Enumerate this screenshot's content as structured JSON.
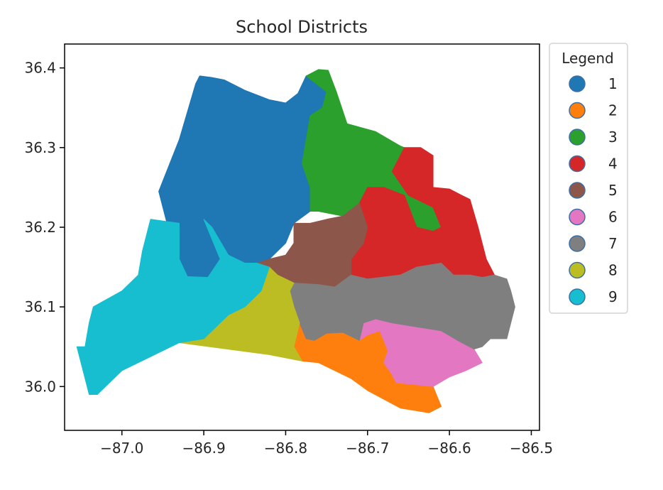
{
  "chart_data": {
    "type": "choropleth",
    "title": "School Districts",
    "xlabel": "",
    "ylabel": "",
    "xlim": [
      -87.07,
      -86.49
    ],
    "ylim": [
      35.945,
      36.43
    ],
    "x_ticks": [
      "−87.0",
      "−86.9",
      "−86.8",
      "−86.7",
      "−86.6",
      "−86.5"
    ],
    "x_tick_values": [
      -87.0,
      -86.9,
      -86.8,
      -86.7,
      -86.6,
      -86.5
    ],
    "y_ticks": [
      "36.0",
      "36.1",
      "36.2",
      "36.3",
      "36.4"
    ],
    "y_tick_values": [
      36.0,
      36.1,
      36.2,
      36.3,
      36.4
    ],
    "grid": false,
    "legend": {
      "title": "Legend",
      "placement": "outside-right-top",
      "entries": [
        {
          "label": "1",
          "color": "#1f77b4"
        },
        {
          "label": "2",
          "color": "#ff7f0e"
        },
        {
          "label": "3",
          "color": "#2ca02c"
        },
        {
          "label": "4",
          "color": "#d62728"
        },
        {
          "label": "5",
          "color": "#8c564b"
        },
        {
          "label": "6",
          "color": "#e377c2"
        },
        {
          "label": "7",
          "color": "#7f7f7f"
        },
        {
          "label": "8",
          "color": "#bcbd22"
        },
        {
          "label": "9",
          "color": "#17becf"
        }
      ]
    },
    "districts": [
      {
        "district": "1",
        "color": "#1f77b4",
        "boundary": [
          [
            -86.945,
            36.205
          ],
          [
            -86.955,
            36.245
          ],
          [
            -86.93,
            36.31
          ],
          [
            -86.91,
            36.38
          ],
          [
            -86.905,
            36.39
          ],
          [
            -86.89,
            36.388
          ],
          [
            -86.875,
            36.385
          ],
          [
            -86.85,
            36.372
          ],
          [
            -86.82,
            36.36
          ],
          [
            -86.8,
            36.356
          ],
          [
            -86.785,
            36.368
          ],
          [
            -86.775,
            36.39
          ],
          [
            -86.76,
            36.39
          ],
          [
            -86.75,
            36.37
          ],
          [
            -86.755,
            36.35
          ],
          [
            -86.77,
            36.34
          ],
          [
            -86.775,
            36.31
          ],
          [
            -86.78,
            36.28
          ],
          [
            -86.77,
            36.25
          ],
          [
            -86.77,
            36.22
          ],
          [
            -86.79,
            36.205
          ],
          [
            -86.8,
            36.18
          ],
          [
            -86.82,
            36.16
          ],
          [
            -86.835,
            36.155
          ],
          [
            -86.85,
            36.155
          ],
          [
            -86.87,
            36.165
          ],
          [
            -86.89,
            36.2
          ],
          [
            -86.9,
            36.21
          ],
          [
            -86.89,
            36.185
          ],
          [
            -86.88,
            36.16
          ],
          [
            -86.895,
            36.137
          ],
          [
            -86.92,
            36.138
          ],
          [
            -86.93,
            36.16
          ],
          [
            -86.93,
            36.2
          ]
        ]
      },
      {
        "district": "2",
        "color": "#ff7f0e",
        "boundary": [
          [
            -86.783,
            36.08
          ],
          [
            -86.775,
            36.06
          ],
          [
            -86.765,
            36.058
          ],
          [
            -86.75,
            36.067
          ],
          [
            -86.73,
            36.068
          ],
          [
            -86.71,
            36.058
          ],
          [
            -86.7,
            36.065
          ],
          [
            -86.685,
            36.07
          ],
          [
            -86.675,
            36.045
          ],
          [
            -86.68,
            36.03
          ],
          [
            -86.67,
            36.015
          ],
          [
            -86.665,
            36.005
          ],
          [
            -86.62,
            36.0
          ],
          [
            -86.61,
            35.975
          ],
          [
            -86.625,
            35.967
          ],
          [
            -86.66,
            35.973
          ],
          [
            -86.7,
            35.995
          ],
          [
            -86.72,
            36.01
          ],
          [
            -86.76,
            36.03
          ],
          [
            -86.78,
            36.032
          ],
          [
            -86.79,
            36.05
          ]
        ]
      },
      {
        "district": "3",
        "color": "#2ca02c",
        "boundary": [
          [
            -86.775,
            36.39
          ],
          [
            -86.76,
            36.398
          ],
          [
            -86.748,
            36.397
          ],
          [
            -86.738,
            36.37
          ],
          [
            -86.725,
            36.33
          ],
          [
            -86.69,
            36.32
          ],
          [
            -86.66,
            36.302
          ],
          [
            -86.655,
            36.3
          ],
          [
            -86.67,
            36.27
          ],
          [
            -86.65,
            36.24
          ],
          [
            -86.62,
            36.225
          ],
          [
            -86.61,
            36.2
          ],
          [
            -86.62,
            36.195
          ],
          [
            -86.64,
            36.2
          ],
          [
            -86.655,
            36.24
          ],
          [
            -86.68,
            36.25
          ],
          [
            -86.7,
            36.25
          ],
          [
            -86.71,
            36.23
          ],
          [
            -86.73,
            36.214
          ],
          [
            -86.76,
            36.22
          ],
          [
            -86.77,
            36.22
          ],
          [
            -86.77,
            36.25
          ],
          [
            -86.78,
            36.28
          ],
          [
            -86.775,
            36.31
          ],
          [
            -86.77,
            36.34
          ],
          [
            -86.755,
            36.35
          ],
          [
            -86.75,
            36.37
          ]
        ]
      },
      {
        "district": "4",
        "color": "#d62728",
        "boundary": [
          [
            -86.655,
            36.3
          ],
          [
            -86.635,
            36.3
          ],
          [
            -86.62,
            36.29
          ],
          [
            -86.62,
            36.25
          ],
          [
            -86.6,
            36.248
          ],
          [
            -86.585,
            36.24
          ],
          [
            -86.575,
            36.235
          ],
          [
            -86.565,
            36.2
          ],
          [
            -86.555,
            36.16
          ],
          [
            -86.545,
            36.14
          ],
          [
            -86.56,
            36.137
          ],
          [
            -86.575,
            36.14
          ],
          [
            -86.595,
            36.14
          ],
          [
            -86.61,
            36.155
          ],
          [
            -86.64,
            36.15
          ],
          [
            -86.66,
            36.14
          ],
          [
            -86.7,
            36.135
          ],
          [
            -86.72,
            36.14
          ],
          [
            -86.72,
            36.16
          ],
          [
            -86.705,
            36.18
          ],
          [
            -86.7,
            36.2
          ],
          [
            -86.71,
            36.23
          ],
          [
            -86.7,
            36.25
          ],
          [
            -86.68,
            36.25
          ],
          [
            -86.655,
            36.24
          ],
          [
            -86.64,
            36.2
          ],
          [
            -86.62,
            36.195
          ],
          [
            -86.61,
            36.2
          ],
          [
            -86.62,
            36.225
          ],
          [
            -86.65,
            36.24
          ],
          [
            -86.67,
            36.27
          ]
        ]
      },
      {
        "district": "5",
        "color": "#8c564b",
        "boundary": [
          [
            -86.835,
            36.155
          ],
          [
            -86.82,
            36.16
          ],
          [
            -86.8,
            36.165
          ],
          [
            -86.79,
            36.18
          ],
          [
            -86.79,
            36.205
          ],
          [
            -86.77,
            36.205
          ],
          [
            -86.75,
            36.21
          ],
          [
            -86.73,
            36.214
          ],
          [
            -86.71,
            36.23
          ],
          [
            -86.7,
            36.2
          ],
          [
            -86.705,
            36.18
          ],
          [
            -86.72,
            36.16
          ],
          [
            -86.72,
            36.14
          ],
          [
            -86.74,
            36.125
          ],
          [
            -86.76,
            36.128
          ],
          [
            -86.79,
            36.13
          ],
          [
            -86.81,
            36.14
          ],
          [
            -86.82,
            36.15
          ]
        ]
      },
      {
        "district": "6",
        "color": "#e377c2",
        "boundary": [
          [
            -86.71,
            36.058
          ],
          [
            -86.705,
            36.08
          ],
          [
            -86.69,
            36.085
          ],
          [
            -86.67,
            36.08
          ],
          [
            -86.64,
            36.075
          ],
          [
            -86.61,
            36.07
          ],
          [
            -86.59,
            36.058
          ],
          [
            -86.57,
            36.047
          ],
          [
            -86.56,
            36.03
          ],
          [
            -86.58,
            36.02
          ],
          [
            -86.6,
            36.012
          ],
          [
            -86.62,
            36.0
          ],
          [
            -86.665,
            36.005
          ],
          [
            -86.67,
            36.015
          ],
          [
            -86.68,
            36.03
          ],
          [
            -86.675,
            36.045
          ],
          [
            -86.685,
            36.07
          ],
          [
            -86.7,
            36.065
          ]
        ]
      },
      {
        "district": "7",
        "color": "#7f7f7f",
        "boundary": [
          [
            -86.79,
            36.13
          ],
          [
            -86.76,
            36.128
          ],
          [
            -86.74,
            36.125
          ],
          [
            -86.72,
            36.14
          ],
          [
            -86.7,
            36.135
          ],
          [
            -86.66,
            36.14
          ],
          [
            -86.64,
            36.15
          ],
          [
            -86.61,
            36.155
          ],
          [
            -86.595,
            36.14
          ],
          [
            -86.575,
            36.14
          ],
          [
            -86.56,
            36.137
          ],
          [
            -86.545,
            36.14
          ],
          [
            -86.53,
            36.135
          ],
          [
            -86.525,
            36.12
          ],
          [
            -86.52,
            36.1
          ],
          [
            -86.525,
            36.08
          ],
          [
            -86.53,
            36.06
          ],
          [
            -86.55,
            36.06
          ],
          [
            -86.56,
            36.05
          ],
          [
            -86.57,
            36.047
          ],
          [
            -86.59,
            36.058
          ],
          [
            -86.61,
            36.07
          ],
          [
            -86.64,
            36.075
          ],
          [
            -86.67,
            36.08
          ],
          [
            -86.69,
            36.085
          ],
          [
            -86.705,
            36.08
          ],
          [
            -86.71,
            36.058
          ],
          [
            -86.73,
            36.068
          ],
          [
            -86.75,
            36.067
          ],
          [
            -86.765,
            36.058
          ],
          [
            -86.775,
            36.06
          ],
          [
            -86.783,
            36.08
          ],
          [
            -86.79,
            36.1
          ],
          [
            -86.795,
            36.12
          ]
        ]
      },
      {
        "district": "8",
        "color": "#bcbd22",
        "boundary": [
          [
            -86.93,
            36.055
          ],
          [
            -86.9,
            36.06
          ],
          [
            -86.885,
            36.075
          ],
          [
            -86.87,
            36.09
          ],
          [
            -86.85,
            36.1
          ],
          [
            -86.83,
            36.12
          ],
          [
            -86.82,
            36.15
          ],
          [
            -86.81,
            36.14
          ],
          [
            -86.79,
            36.13
          ],
          [
            -86.795,
            36.12
          ],
          [
            -86.79,
            36.1
          ],
          [
            -86.783,
            36.08
          ],
          [
            -86.79,
            36.05
          ],
          [
            -86.78,
            36.032
          ],
          [
            -86.82,
            36.04
          ]
        ]
      },
      {
        "district": "9",
        "color": "#17becf",
        "boundary": [
          [
            -86.965,
            36.21
          ],
          [
            -86.93,
            36.205
          ],
          [
            -86.93,
            36.16
          ],
          [
            -86.92,
            36.138
          ],
          [
            -86.895,
            36.137
          ],
          [
            -86.88,
            36.16
          ],
          [
            -86.89,
            36.185
          ],
          [
            -86.9,
            36.21
          ],
          [
            -86.89,
            36.2
          ],
          [
            -86.87,
            36.165
          ],
          [
            -86.85,
            36.155
          ],
          [
            -86.835,
            36.155
          ],
          [
            -86.82,
            36.15
          ],
          [
            -86.83,
            36.12
          ],
          [
            -86.85,
            36.1
          ],
          [
            -86.87,
            36.09
          ],
          [
            -86.885,
            36.075
          ],
          [
            -86.9,
            36.06
          ],
          [
            -86.93,
            36.055
          ],
          [
            -86.95,
            36.045
          ],
          [
            -87.0,
            36.02
          ],
          [
            -87.03,
            35.99
          ],
          [
            -87.04,
            35.99
          ],
          [
            -87.05,
            36.03
          ],
          [
            -87.055,
            36.05
          ],
          [
            -87.045,
            36.05
          ],
          [
            -87.04,
            36.08
          ],
          [
            -87.035,
            36.1
          ],
          [
            -87.0,
            36.12
          ],
          [
            -86.98,
            36.14
          ],
          [
            -86.975,
            36.17
          ]
        ]
      }
    ]
  }
}
